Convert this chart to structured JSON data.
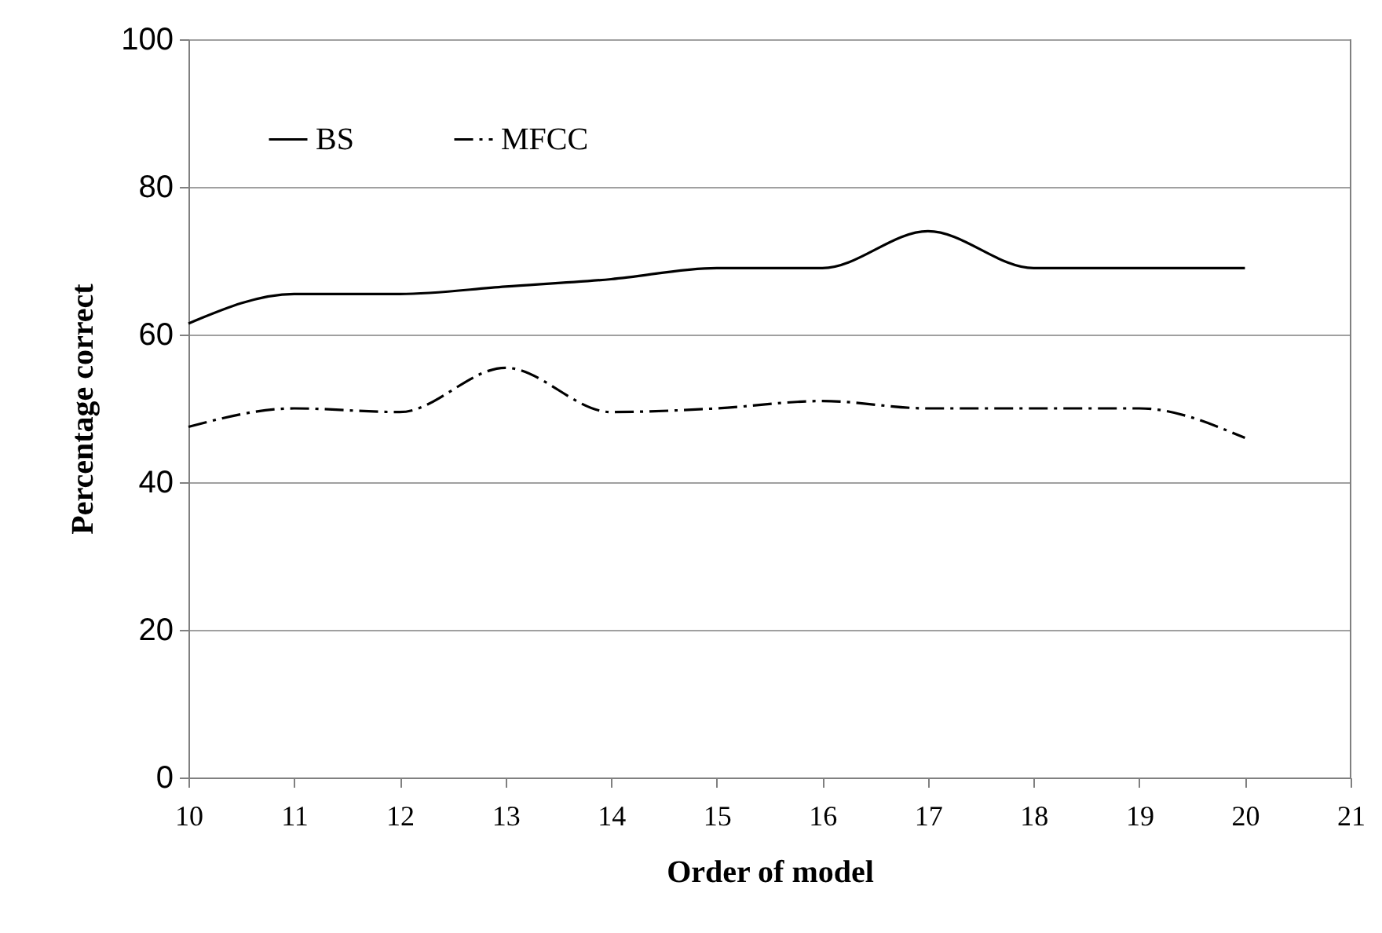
{
  "chart_data": {
    "type": "line",
    "xlabel": "Order of model",
    "ylabel": "Percentage correct",
    "x": [
      10,
      11,
      12,
      13,
      14,
      15,
      16,
      17,
      18,
      19,
      20
    ],
    "series": [
      {
        "name": "BS",
        "color": "#000000",
        "line_style": "solid",
        "values": [
          61.5,
          65.5,
          65.5,
          66.5,
          67.5,
          69,
          69,
          74,
          69,
          69,
          69
        ]
      },
      {
        "name": "MFCC",
        "color": "#000000",
        "line_style": "dashed",
        "values": [
          47.5,
          50,
          49.5,
          55.5,
          49.5,
          50,
          51,
          50,
          50,
          50,
          46
        ]
      }
    ],
    "xlim": [
      10,
      21
    ],
    "xticks": [
      10,
      11,
      12,
      13,
      14,
      15,
      16,
      17,
      18,
      19,
      20,
      21
    ],
    "ylim": [
      0,
      100
    ],
    "yticks": [
      0,
      20,
      40,
      60,
      80,
      100
    ],
    "grid": "y",
    "legend": "top left",
    "marker": "none"
  }
}
